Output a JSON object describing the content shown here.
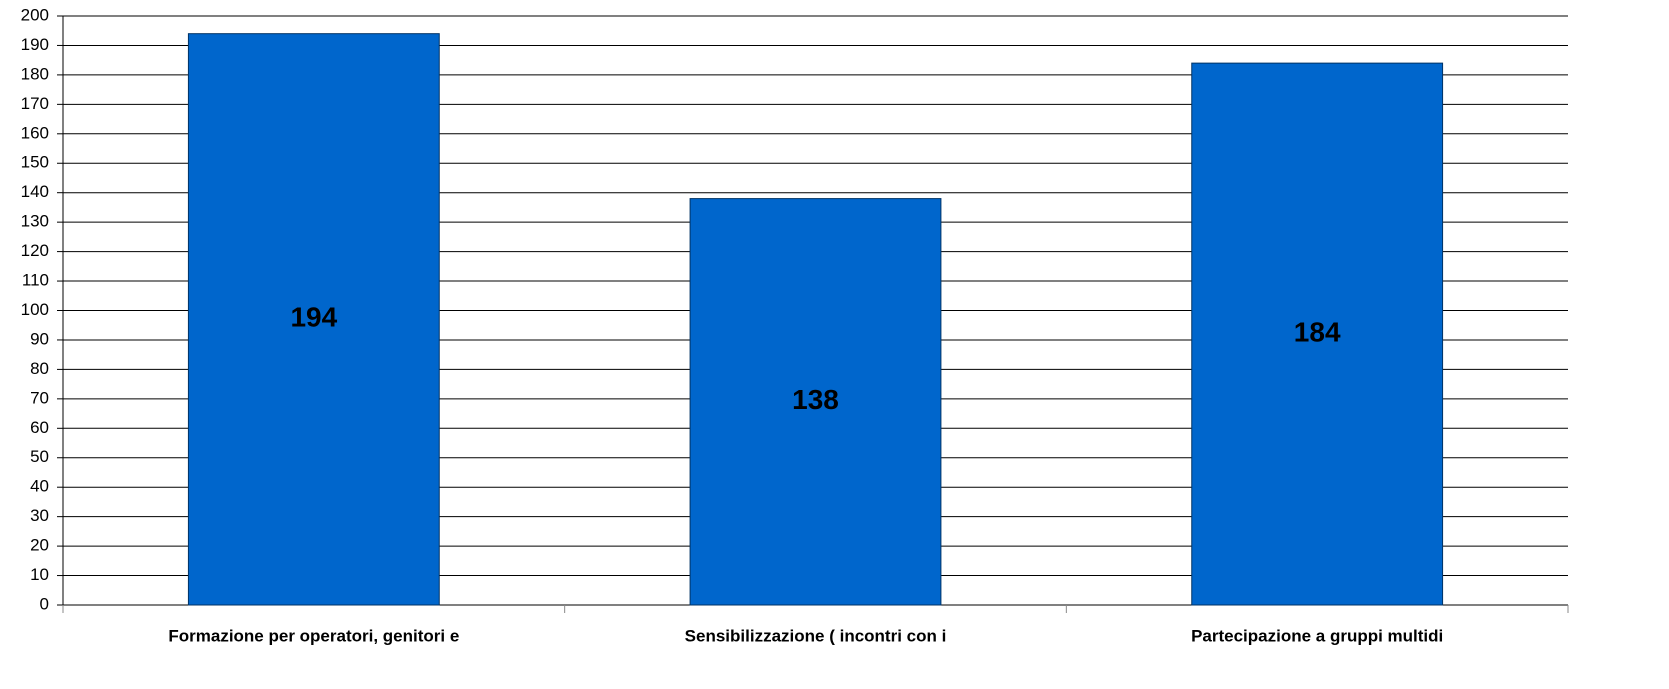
{
  "chart_data": {
    "type": "bar",
    "categories": [
      "Formazione per operatori, genitori e",
      "Sensibilizzazione ( incontri con i",
      "Partecipazione a gruppi multidi"
    ],
    "values": [
      194,
      138,
      184
    ],
    "color": "#0066cc",
    "ylim": [
      0,
      200
    ],
    "yticks": [
      0,
      10,
      20,
      30,
      40,
      50,
      60,
      70,
      80,
      90,
      100,
      110,
      120,
      130,
      140,
      150,
      160,
      170,
      180,
      190,
      200
    ],
    "grid": true
  }
}
